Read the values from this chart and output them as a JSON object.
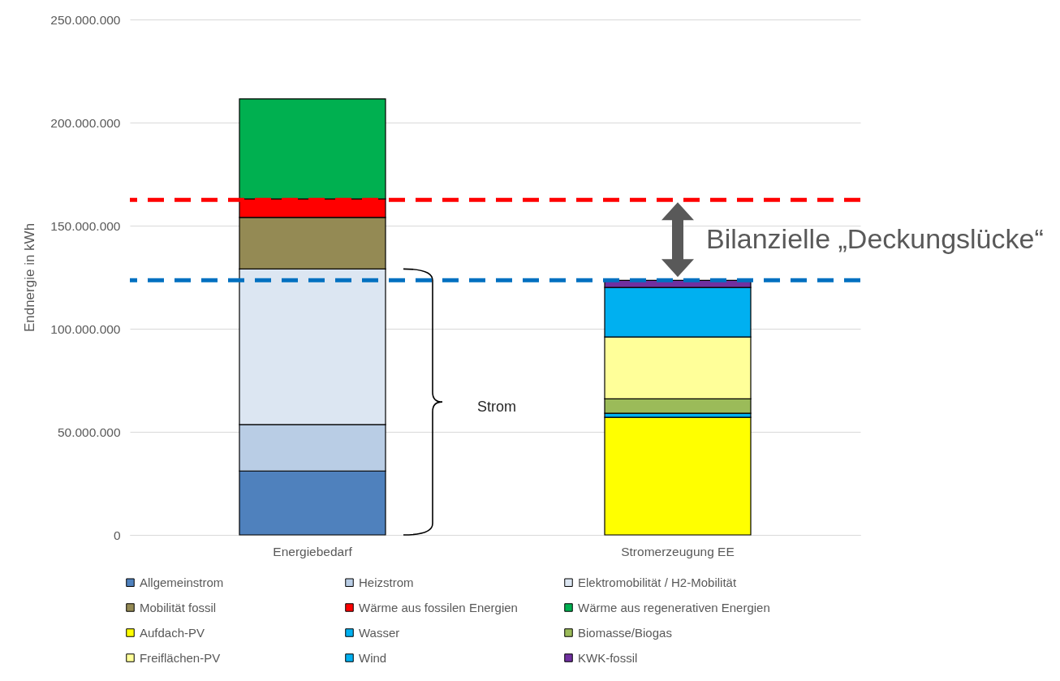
{
  "chart_data": {
    "type": "bar",
    "categories": [
      "Energiebedarf",
      "Stromerzeugung EE"
    ],
    "series": [
      {
        "name": "Allgemeinstrom",
        "color": "#4f81bd",
        "values": [
          31000000,
          null
        ]
      },
      {
        "name": "Heizstrom",
        "color": "#b9cde5",
        "values": [
          22500000,
          null
        ]
      },
      {
        "name": "Elektromobilität / H2-Mobilität",
        "color": "#dce6f2",
        "values": [
          75500000,
          null
        ]
      },
      {
        "name": "Mobilität fossil",
        "color": "#948a54",
        "values": [
          25000000,
          null
        ]
      },
      {
        "name": "Wärme aus fossilen Energien",
        "color": "#ff0000",
        "values": [
          9000000,
          null
        ]
      },
      {
        "name": "Wärme aus regenerativen Energien",
        "color": "#00b050",
        "values": [
          48500000,
          null
        ]
      },
      {
        "name": "Aufdach-PV",
        "color": "#ffff00",
        "values": [
          null,
          57000000
        ]
      },
      {
        "name": "Wasser",
        "color": "#00b0f0",
        "values": [
          null,
          2000000
        ]
      },
      {
        "name": "Biomasse/Biogas",
        "color": "#9bbb59",
        "values": [
          null,
          7000000
        ]
      },
      {
        "name": "Freiflächen-PV",
        "color": "#ffff99",
        "values": [
          null,
          30000000
        ]
      },
      {
        "name": "Wind",
        "color": "#00b0f0",
        "values": [
          null,
          24000000
        ]
      },
      {
        "name": "KWK-fossil",
        "color": "#7030a0",
        "values": [
          null,
          3500000
        ]
      }
    ],
    "stacked": true,
    "ylabel": "Endnergie in kWh",
    "ylim": [
      0,
      250000000
    ],
    "yticks": [
      0,
      {
        "value": 50000000,
        "label": "50.000.000"
      },
      {
        "value": 100000000,
        "label": "100.000.000"
      },
      {
        "value": 150000000,
        "label": "150.000.000"
      },
      {
        "value": 200000000,
        "label": "200.000.000"
      },
      {
        "value": 250000000,
        "label": "250.000.000"
      }
    ],
    "grid": "y",
    "legend": "bottom",
    "ref_lines": [
      {
        "axis": "y",
        "value": 162500000,
        "color": "#ff0000",
        "line_style": "dashed"
      },
      {
        "axis": "y",
        "value": 123500000,
        "color": "#0070c0",
        "line_style": "dashed"
      }
    ],
    "annotations": [
      "Bilanzielle „Deckungslücke“",
      "Strom"
    ]
  }
}
